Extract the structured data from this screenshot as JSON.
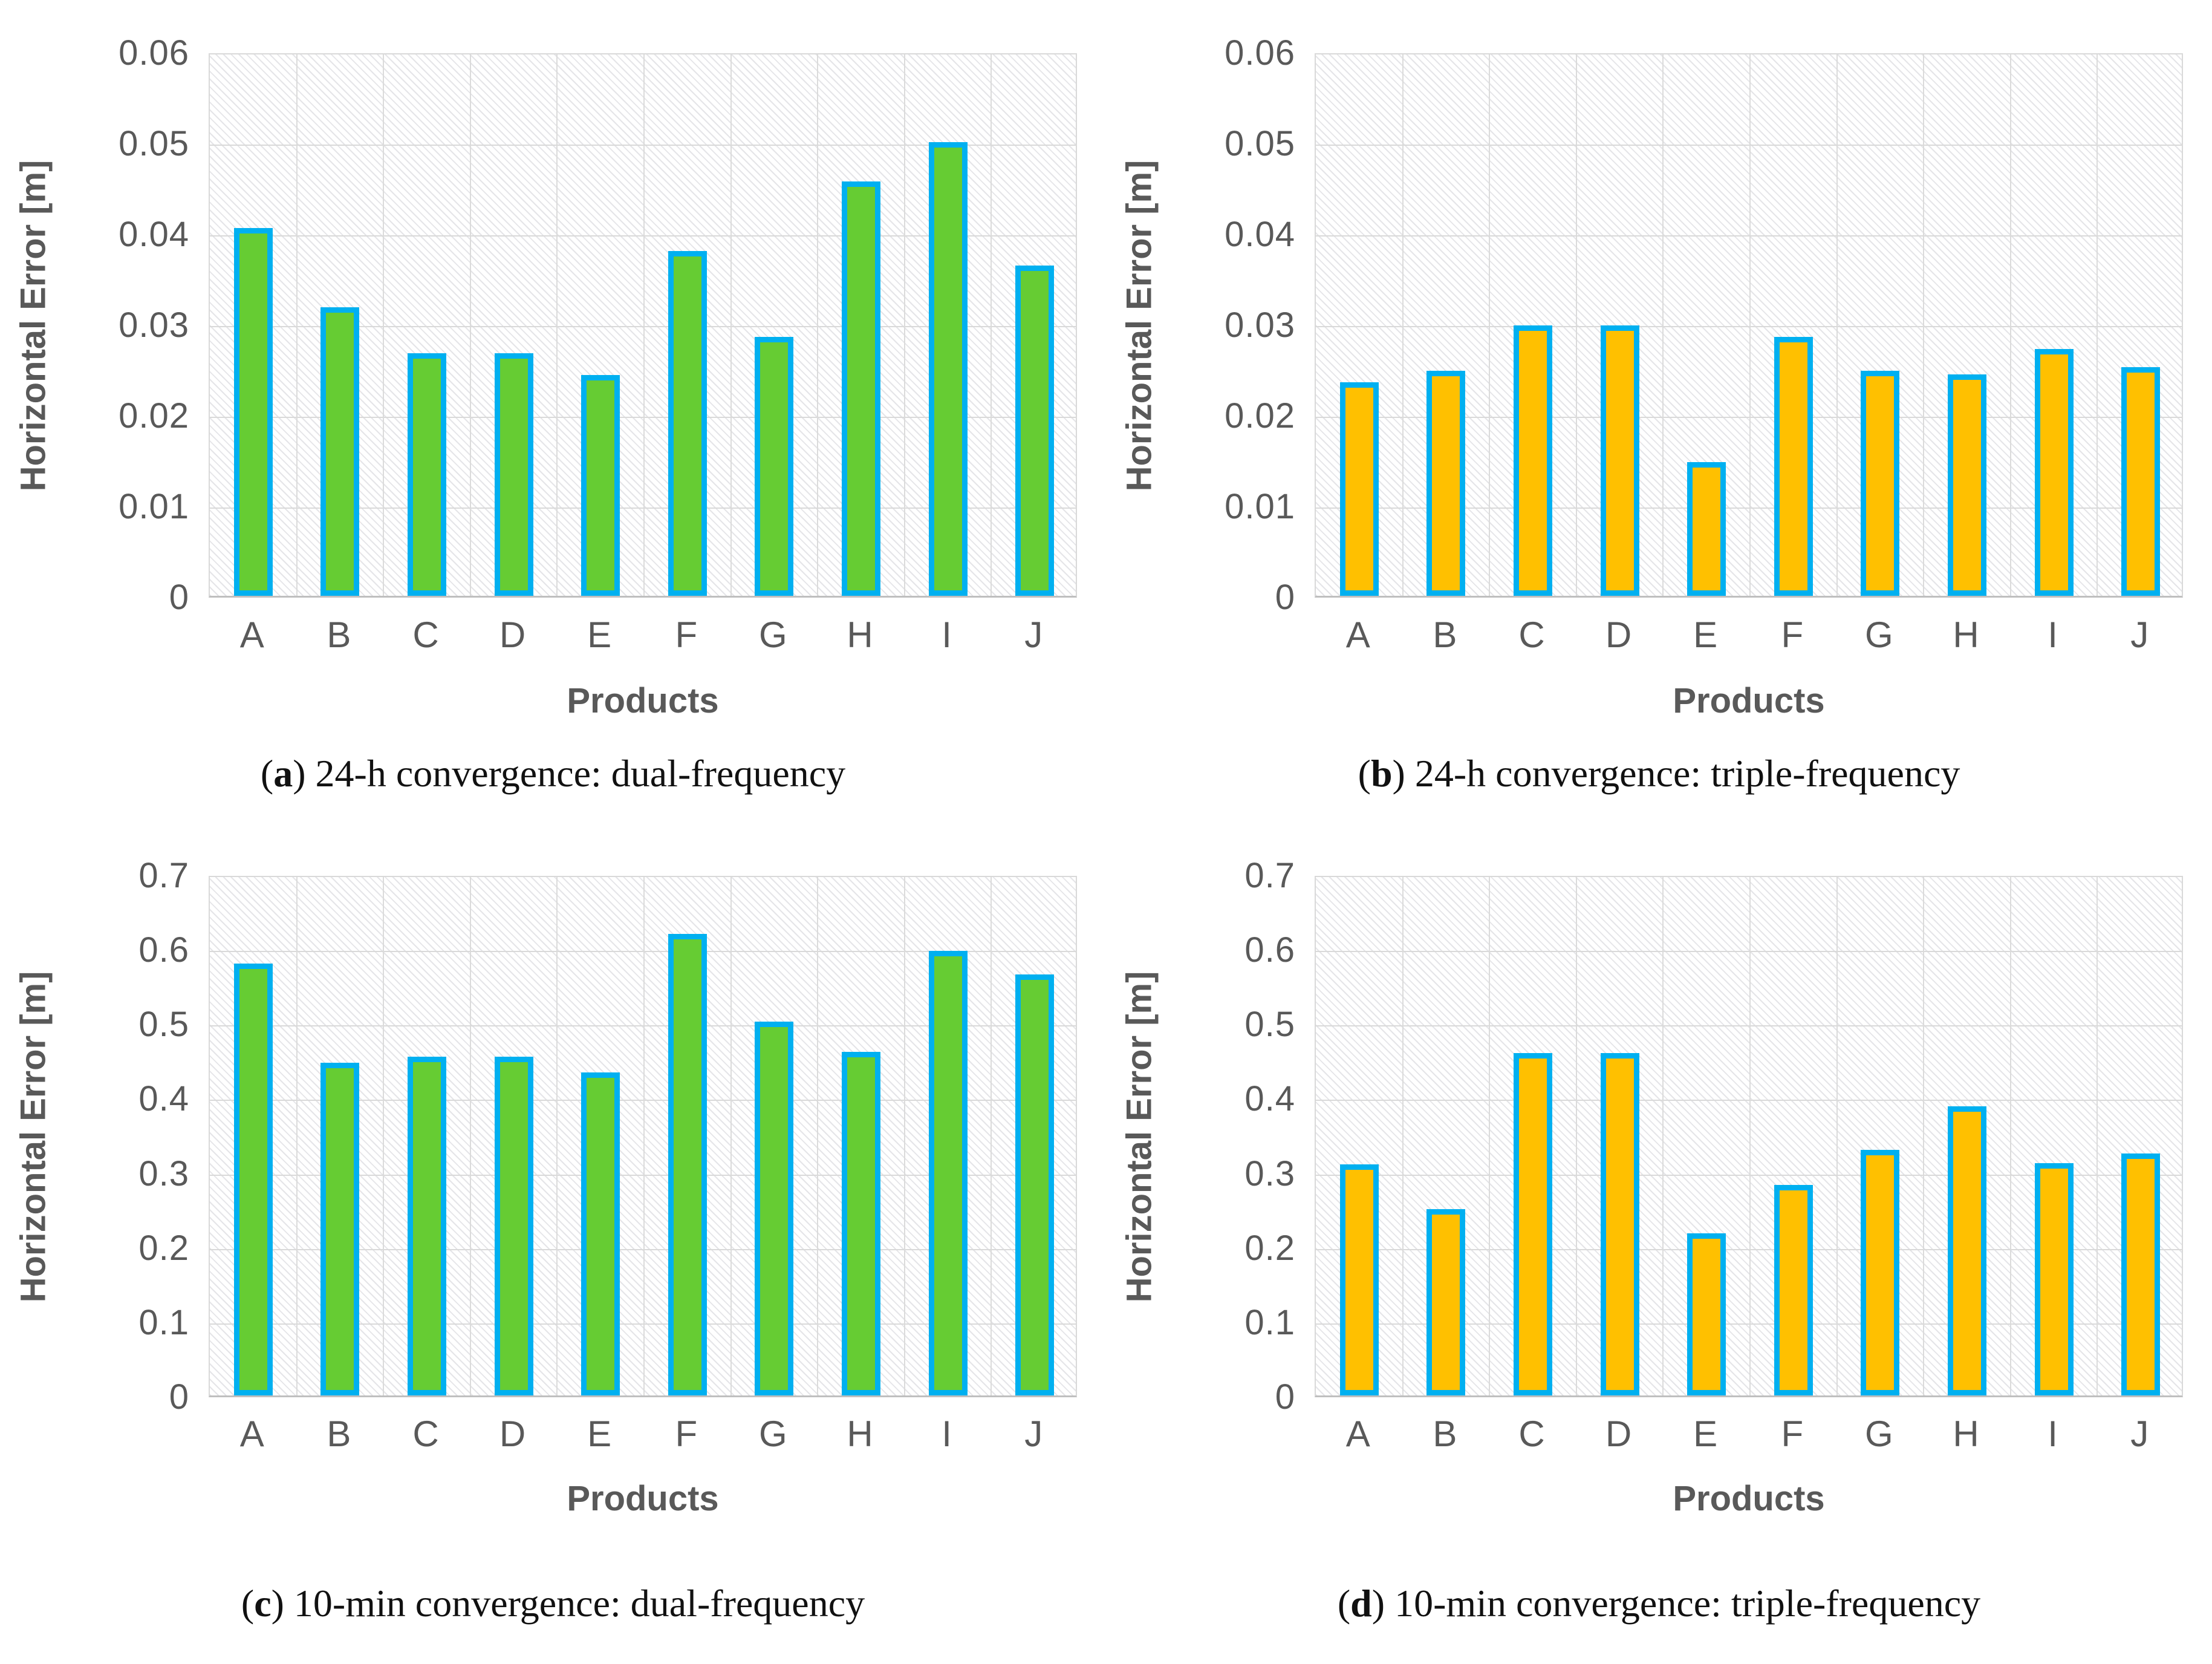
{
  "figure": {
    "background": "#ffffff",
    "text_color": "#595959",
    "gridline_color": "#D9D9D9",
    "bar_border_color": "#00B0F0",
    "green_fill": "#66CC33",
    "orange_fill": "#FFC000"
  },
  "chart_data": [
    {
      "type": "bar",
      "title": "(a) 24-h convergence: dual-frequency",
      "caption": {
        "open": "(",
        "letter": "a",
        "close": ")",
        "text": " 24-h convergence: dual-frequency"
      },
      "xlabel": "Products",
      "ylabel": "Horizontal Error [m]",
      "categories": [
        "A",
        "B",
        "C",
        "D",
        "E",
        "F",
        "G",
        "H",
        "I",
        "J"
      ],
      "values": [
        0.0405,
        0.0318,
        0.0267,
        0.0267,
        0.0243,
        0.038,
        0.0285,
        0.0457,
        0.05,
        0.0364
      ],
      "ylim": [
        0,
        0.06
      ],
      "yticks": [
        "0.06",
        "0.05",
        "0.04",
        "0.03",
        "0.02",
        "0.01",
        "0"
      ],
      "grid": "on",
      "legend": "none",
      "bar_fill": "#66CC33",
      "bar_border": "#00B0F0"
    },
    {
      "type": "bar",
      "title": "(b) 24-h convergence: triple-frequency",
      "caption": {
        "open": "(",
        "letter": "b",
        "close": ")",
        "text": " 24-h convergence: triple-frequency"
      },
      "xlabel": "Products",
      "ylabel": "Horizontal Error [m]",
      "categories": [
        "A",
        "B",
        "C",
        "D",
        "E",
        "F",
        "G",
        "H",
        "I",
        "J"
      ],
      "values": [
        0.0235,
        0.0248,
        0.0298,
        0.0298,
        0.0147,
        0.0285,
        0.0248,
        0.0244,
        0.0272,
        0.0252
      ],
      "ylim": [
        0,
        0.06
      ],
      "yticks": [
        "0.06",
        "0.05",
        "0.04",
        "0.03",
        "0.02",
        "0.01",
        "0"
      ],
      "grid": "on",
      "legend": "none",
      "bar_fill": "#FFC000",
      "bar_border": "#00B0F0"
    },
    {
      "type": "bar",
      "title": "(c) 10-min convergence: dual-frequency",
      "caption": {
        "open": "(",
        "letter": "c",
        "close": ")",
        "text": " 10-min convergence: dual-frequency"
      },
      "xlabel": "Products",
      "ylabel": "Horizontal Error [m]",
      "categories": [
        "A",
        "B",
        "C",
        "D",
        "E",
        "F",
        "G",
        "H",
        "I",
        "J"
      ],
      "values": [
        0.58,
        0.447,
        0.455,
        0.455,
        0.434,
        0.62,
        0.502,
        0.461,
        0.597,
        0.565
      ],
      "ylim": [
        0,
        0.7
      ],
      "yticks": [
        "0.7",
        "0.6",
        "0.5",
        "0.4",
        "0.3",
        "0.2",
        "0.1",
        "0"
      ],
      "grid": "on",
      "legend": "none",
      "bar_fill": "#66CC33",
      "bar_border": "#00B0F0"
    },
    {
      "type": "bar",
      "title": "(d) 10-min convergence: triple-frequency",
      "caption": {
        "open": "(",
        "letter": "d",
        "close": ")",
        "text": " 10-min convergence: triple-frequency"
      },
      "xlabel": "Products",
      "ylabel": "Horizontal Error [m]",
      "categories": [
        "A",
        "B",
        "C",
        "D",
        "E",
        "F",
        "G",
        "H",
        "I",
        "J"
      ],
      "values": [
        0.31,
        0.25,
        0.46,
        0.46,
        0.218,
        0.283,
        0.33,
        0.388,
        0.312,
        0.325
      ],
      "ylim": [
        0,
        0.7
      ],
      "yticks": [
        "0.7",
        "0.6",
        "0.5",
        "0.4",
        "0.3",
        "0.2",
        "0.1",
        "0"
      ],
      "grid": "on",
      "legend": "none",
      "bar_fill": "#FFC000",
      "bar_border": "#00B0F0"
    }
  ]
}
